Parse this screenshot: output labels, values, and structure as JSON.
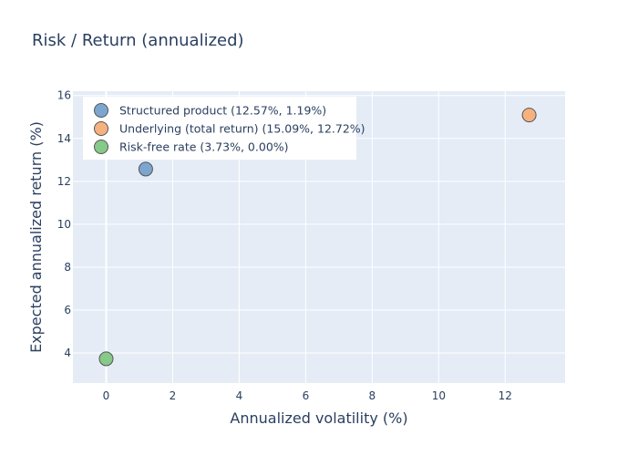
{
  "chart_data": {
    "type": "scatter",
    "title": "Risk / Return (annualized)",
    "xlabel": "Annualized volatility (%)",
    "ylabel": "Expected annualized return (%)",
    "xlim": [
      -1.0,
      13.8
    ],
    "ylim": [
      2.6,
      16.2
    ],
    "xticks": [
      0,
      2,
      4,
      6,
      8,
      10,
      12
    ],
    "yticks": [
      4,
      6,
      8,
      10,
      12,
      14,
      16
    ],
    "grid": true,
    "legend_position": "top-left",
    "series": [
      {
        "name": "Structured product (12.57%, 1.19%)",
        "x": [
          1.19
        ],
        "y": [
          12.57
        ],
        "color": "#7da6cf"
      },
      {
        "name": "Underlying (total return) (15.09%, 12.72%)",
        "x": [
          12.72
        ],
        "y": [
          15.09
        ],
        "color": "#f5b27f"
      },
      {
        "name": "Risk-free rate (3.73%, 0.00%)",
        "x": [
          0.0
        ],
        "y": [
          3.73
        ],
        "color": "#86c989"
      }
    ]
  },
  "colors": {
    "plot_bg": "#e5ecf6",
    "grid": "#ffffff",
    "text": "#2a3f5f",
    "marker_border": "#555555"
  }
}
